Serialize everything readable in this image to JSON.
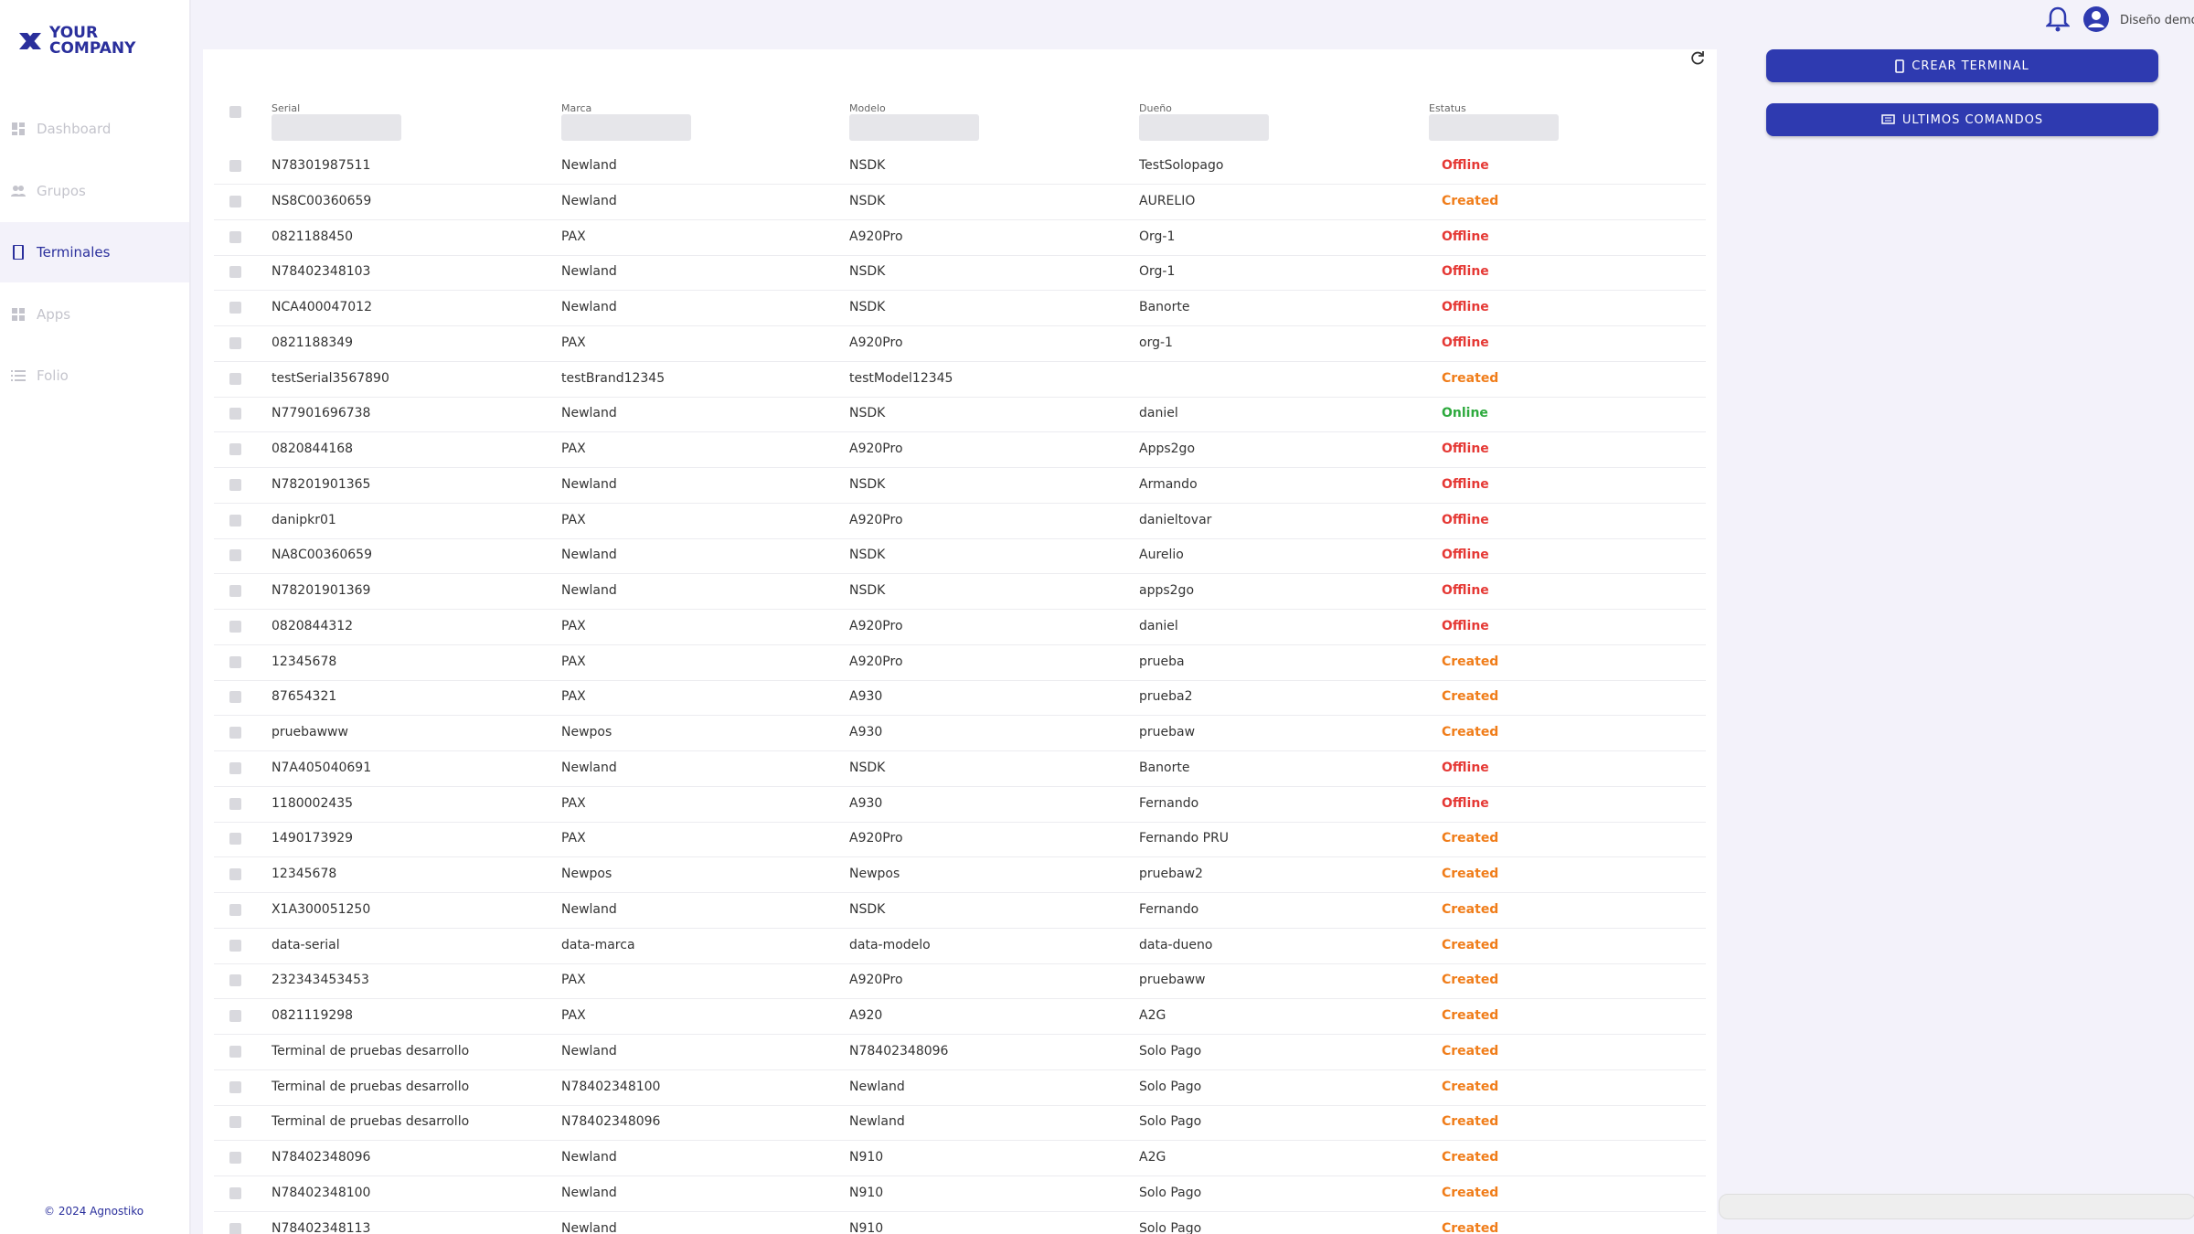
{
  "sidebar": {
    "logo": "YOUR COMPANY",
    "items": [
      "Dashboard",
      "Grupos",
      "Terminales",
      "Apps",
      "Folio"
    ],
    "active": 2,
    "footer": "© 2024 Agnostiko"
  },
  "actions": [
    "CREAR TERMINAL",
    "ULTIMOS COMANDOS"
  ],
  "user": "Diseño demo",
  "table": {
    "columns": [
      "Serial",
      "Marca",
      "Modelo",
      "Dueño",
      "Estatus"
    ],
    "status_colors": {
      "Offline": "#e53935",
      "Created": "#f07d1a",
      "Online": "#2eaa3e"
    },
    "rows": [
      {
        "serial": "N78301987511",
        "marca": "Newland",
        "modelo": "NSDK",
        "dueno": "TestSolopago",
        "estatus": "Offline"
      },
      {
        "serial": "NS8C00360659",
        "marca": "Newland",
        "modelo": "NSDK",
        "dueno": "AURELIO",
        "estatus": "Created"
      },
      {
        "serial": "0821188450",
        "marca": "PAX",
        "modelo": "A920Pro",
        "dueno": "Org-1",
        "estatus": "Offline"
      },
      {
        "serial": "N78402348103",
        "marca": "Newland",
        "modelo": "NSDK",
        "dueno": "Org-1",
        "estatus": "Offline"
      },
      {
        "serial": "NCA400047012",
        "marca": "Newland",
        "modelo": "NSDK",
        "dueno": "Banorte",
        "estatus": "Offline"
      },
      {
        "serial": "0821188349",
        "marca": "PAX",
        "modelo": "A920Pro",
        "dueno": "org-1",
        "estatus": "Offline"
      },
      {
        "serial": "testSerial3567890",
        "marca": "testBrand12345",
        "modelo": "testModel12345",
        "dueno": null,
        "estatus": "Created"
      },
      {
        "serial": "N77901696738",
        "marca": "Newland",
        "modelo": "NSDK",
        "dueno": "daniel",
        "estatus": "Online"
      },
      {
        "serial": "0820844168",
        "marca": "PAX",
        "modelo": "A920Pro",
        "dueno": "Apps2go",
        "estatus": "Offline"
      },
      {
        "serial": "N78201901365",
        "marca": "Newland",
        "modelo": "NSDK",
        "dueno": "Armando",
        "estatus": "Offline"
      },
      {
        "serial": "danipkr01",
        "marca": "PAX",
        "modelo": "A920Pro",
        "dueno": "danieltovar",
        "estatus": "Offline"
      },
      {
        "serial": "NA8C00360659",
        "marca": "Newland",
        "modelo": "NSDK",
        "dueno": "Aurelio",
        "estatus": "Offline"
      },
      {
        "serial": "N78201901369",
        "marca": "Newland",
        "modelo": "NSDK",
        "dueno": "apps2go",
        "estatus": "Offline"
      },
      {
        "serial": "0820844312",
        "marca": "PAX",
        "modelo": "A920Pro",
        "dueno": "daniel",
        "estatus": "Offline"
      },
      {
        "serial": "12345678",
        "marca": "PAX",
        "modelo": "A920Pro",
        "dueno": "prueba",
        "estatus": "Created"
      },
      {
        "serial": "87654321",
        "marca": "PAX",
        "modelo": "A930",
        "dueno": "prueba2",
        "estatus": "Created"
      },
      {
        "serial": "pruebawww",
        "marca": "Newpos",
        "modelo": "A930",
        "dueno": "pruebaw",
        "estatus": "Created"
      },
      {
        "serial": "N7A405040691",
        "marca": "Newland",
        "modelo": "NSDK",
        "dueno": "Banorte",
        "estatus": "Offline"
      },
      {
        "serial": "1180002435",
        "marca": "PAX",
        "modelo": "A930",
        "dueno": "Fernando",
        "estatus": "Offline"
      },
      {
        "serial": "1490173929",
        "marca": "PAX",
        "modelo": "A920Pro",
        "dueno": "Fernando PRU",
        "estatus": "Created"
      },
      {
        "serial": "12345678",
        "marca": "Newpos",
        "modelo": "Newpos",
        "dueno": "pruebaw2",
        "estatus": "Created"
      },
      {
        "serial": "X1A300051250",
        "marca": "Newland",
        "modelo": "NSDK",
        "dueno": "Fernando",
        "estatus": "Created"
      },
      {
        "serial": "data-serial",
        "marca": "data-marca",
        "modelo": "data-modelo",
        "dueno": "data-dueno",
        "estatus": "Created"
      },
      {
        "serial": "232343453453",
        "marca": "PAX",
        "modelo": "A920Pro",
        "dueno": "pruebaww",
        "estatus": "Created"
      },
      {
        "serial": "0821119298",
        "marca": "PAX",
        "modelo": "A920",
        "dueno": "A2G",
        "estatus": "Created"
      },
      {
        "serial": "Terminal de pruebas desarrollo",
        "marca": "Newland",
        "modelo": "N78402348096",
        "dueno": "Solo Pago",
        "estatus": "Created"
      },
      {
        "serial": "Terminal de pruebas desarrollo",
        "marca": "N78402348100",
        "modelo": "Newland",
        "dueno": "Solo Pago",
        "estatus": "Created"
      },
      {
        "serial": "Terminal de pruebas desarrollo",
        "marca": "N78402348096",
        "modelo": "Newland",
        "dueno": "Solo Pago",
        "estatus": "Created"
      },
      {
        "serial": "N78402348096",
        "marca": "Newland",
        "modelo": "N910",
        "dueno": "A2G",
        "estatus": "Created"
      },
      {
        "serial": "N78402348100",
        "marca": "Newland",
        "modelo": "N910",
        "dueno": "Solo Pago",
        "estatus": "Created"
      },
      {
        "serial": "N78402348113",
        "marca": "Newland",
        "modelo": "N910",
        "dueno": "Solo Pago",
        "estatus": "Created"
      }
    ]
  }
}
